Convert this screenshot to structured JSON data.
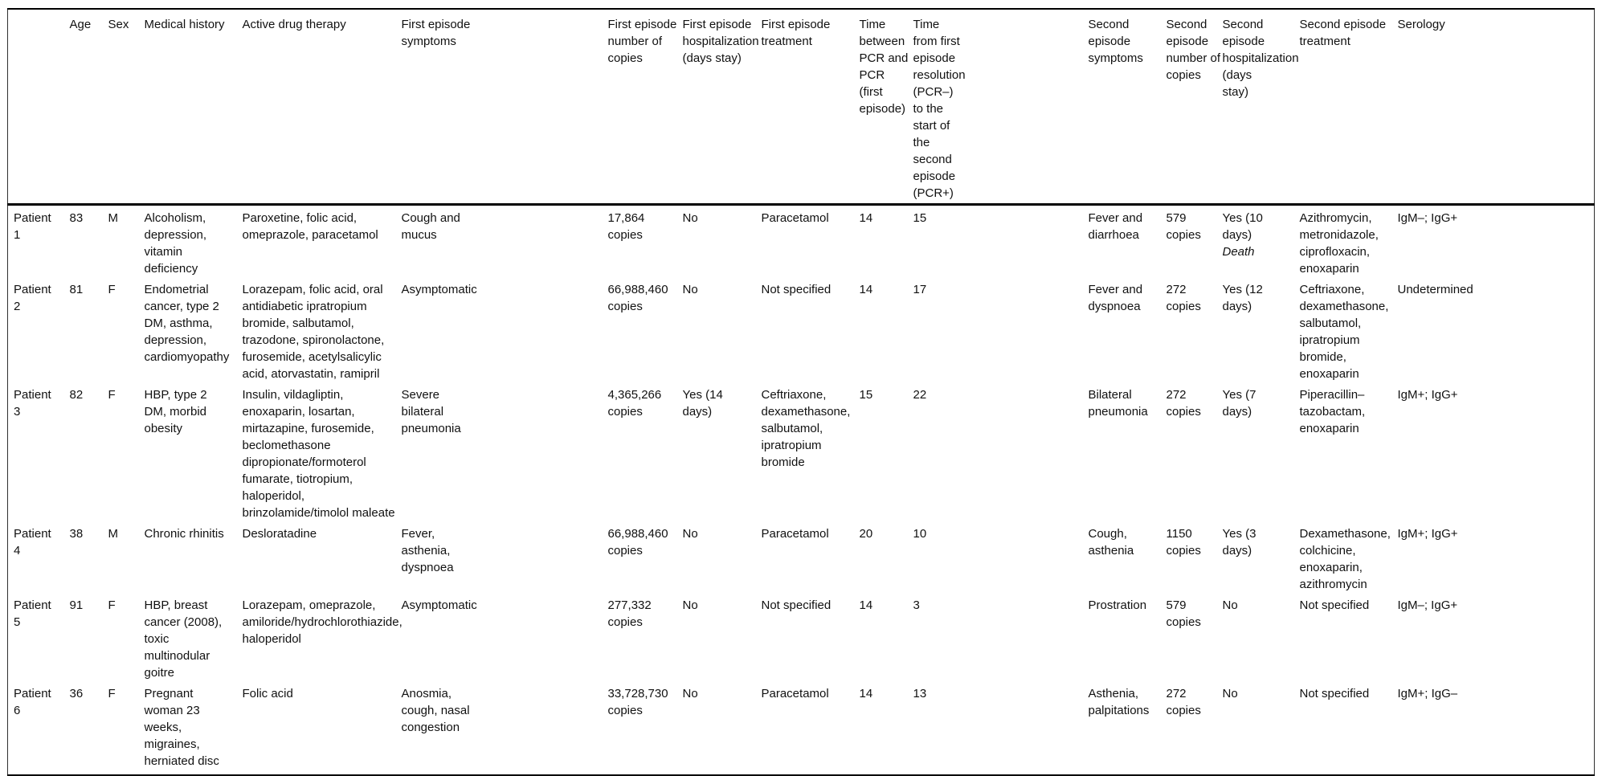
{
  "table": {
    "columns": [
      {
        "key": "patient",
        "label": ""
      },
      {
        "key": "age",
        "label": "Age"
      },
      {
        "key": "sex",
        "label": "Sex"
      },
      {
        "key": "medical_history",
        "label": "Medical history"
      },
      {
        "key": "drug_therapy",
        "label": "Active drug therapy"
      },
      {
        "key": "first_symptoms",
        "label": "First episode symptoms"
      },
      {
        "key": "first_copies",
        "label": "First episode number of copies"
      },
      {
        "key": "first_hospitalization",
        "label": "First episode hospitalization (days stay)"
      },
      {
        "key": "first_treatment",
        "label": "First episode treatment"
      },
      {
        "key": "time_between_pcr",
        "label": "Time between PCR and PCR (first episode)"
      },
      {
        "key": "time_resolution_to_second",
        "label": "Time from first episode resolution (PCR–) to the start of the second episode (PCR+)"
      },
      {
        "key": "second_symptoms",
        "label": "Second episode symptoms"
      },
      {
        "key": "second_copies",
        "label": "Second episode number of copies"
      },
      {
        "key": "second_hospitalization",
        "label": "Second episode hospitalization (days stay)"
      },
      {
        "key": "second_treatment",
        "label": "Second episode treatment"
      },
      {
        "key": "serology",
        "label": "Serology"
      }
    ],
    "rows": [
      {
        "patient": "Patient 1",
        "age": "83",
        "sex": "M",
        "medical_history": "Alcoholism, depression, vitamin deficiency",
        "drug_therapy": "Paroxetine, folic acid, omeprazole, paracetamol",
        "first_symptoms": "Cough and mucus",
        "first_copies": "17,864 copies",
        "first_hospitalization": "No",
        "first_treatment": "Paracetamol",
        "time_between_pcr": "14",
        "time_resolution_to_second": "15",
        "second_symptoms": "Fever and diarrhoea",
        "second_copies": "579 copies",
        "second_hospitalization": "Yes (10 days)",
        "second_hospitalization_note": "Death",
        "second_treatment": "Azithromycin, metronidazole, ciprofloxacin, enoxaparin",
        "serology": "IgM–; IgG+"
      },
      {
        "patient": "Patient 2",
        "age": "81",
        "sex": "F",
        "medical_history": "Endometrial cancer, type 2 DM, asthma, depression, cardiomyopathy",
        "drug_therapy": "Lorazepam, folic acid, oral antidiabetic ipratropium bromide, salbutamol, trazodone, spironolactone, furosemide, acetylsalicylic acid, atorvastatin, ramipril",
        "first_symptoms": "Asymptomatic",
        "first_copies": "66,988,460 copies",
        "first_hospitalization": "No",
        "first_treatment": "Not specified",
        "time_between_pcr": "14",
        "time_resolution_to_second": "17",
        "second_symptoms": "Fever and dyspnoea",
        "second_copies": "272 copies",
        "second_hospitalization": "Yes (12 days)",
        "second_hospitalization_note": "",
        "second_treatment": "Ceftriaxone, dexamethasone, salbutamol, ipratropium bromide, enoxaparin",
        "serology": "Undetermined"
      },
      {
        "patient": "Patient 3",
        "age": "82",
        "sex": "F",
        "medical_history": "HBP, type 2 DM, morbid obesity",
        "drug_therapy": "Insulin, vildagliptin, enoxaparin, losartan, mirtazapine, furosemide, beclomethasone dipropionate/formoterol fumarate, tiotropium, haloperidol, brinzolamide/timolol maleate",
        "first_symptoms": "Severe bilateral pneumonia",
        "first_copies": "4,365,266 copies",
        "first_hospitalization": "Yes (14 days)",
        "first_treatment": "Ceftriaxone, dexamethasone, salbutamol, ipratropium bromide",
        "time_between_pcr": "15",
        "time_resolution_to_second": "22",
        "second_symptoms": "Bilateral pneumonia",
        "second_copies": "272 copies",
        "second_hospitalization": "Yes (7 days)",
        "second_hospitalization_note": "",
        "second_treatment": "Piperacillin–tazobactam, enoxaparin",
        "serology": "IgM+; IgG+"
      },
      {
        "patient": "Patient 4",
        "age": "38",
        "sex": "M",
        "medical_history": "Chronic rhinitis",
        "drug_therapy": "Desloratadine",
        "first_symptoms": "Fever, asthenia, dyspnoea",
        "first_copies": "66,988,460 copies",
        "first_hospitalization": "No",
        "first_treatment": "Paracetamol",
        "time_between_pcr": "20",
        "time_resolution_to_second": "10",
        "second_symptoms": "Cough, asthenia",
        "second_copies": "1150 copies",
        "second_hospitalization": "Yes (3 days)",
        "second_hospitalization_note": "",
        "second_treatment": "Dexamethasone, colchicine, enoxaparin, azithromycin",
        "serology": "IgM+; IgG+"
      },
      {
        "patient": "Patient 5",
        "age": "91",
        "sex": "F",
        "medical_history": "HBP, breast cancer (2008), toxic multinodular goitre",
        "drug_therapy": "Lorazepam, omeprazole, amiloride/hydrochlorothiazide, haloperidol",
        "first_symptoms": "Asymptomatic",
        "first_copies": "277,332 copies",
        "first_hospitalization": "No",
        "first_treatment": "Not specified",
        "time_between_pcr": "14",
        "time_resolution_to_second": "3",
        "second_symptoms": "Prostration",
        "second_copies": "579 copies",
        "second_hospitalization": "No",
        "second_hospitalization_note": "",
        "second_treatment": "Not specified",
        "serology": "IgM–; IgG+"
      },
      {
        "patient": "Patient 6",
        "age": "36",
        "sex": "F",
        "medical_history": "Pregnant woman 23 weeks, migraines, herniated disc",
        "drug_therapy": "Folic acid",
        "first_symptoms": "Anosmia, cough, nasal congestion",
        "first_copies": "33,728,730 copies",
        "first_hospitalization": "No",
        "first_treatment": "Paracetamol",
        "time_between_pcr": "14",
        "time_resolution_to_second": "13",
        "second_symptoms": "Asthenia, palpitations",
        "second_copies": "272 copies",
        "second_hospitalization": "No",
        "second_hospitalization_note": "",
        "second_treatment": "Not specified",
        "serology": "IgM+; IgG–"
      }
    ]
  }
}
